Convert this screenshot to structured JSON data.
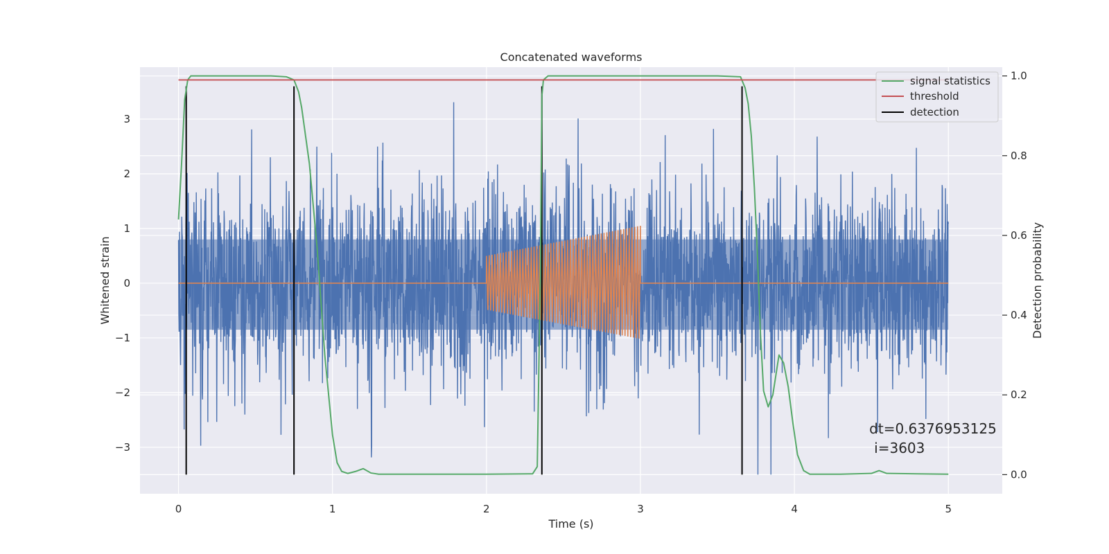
{
  "chart_data": {
    "type": "line",
    "title": "Concatenated waveforms",
    "xlabel": "Time (s)",
    "ylabel": "Whitened strain",
    "ylabel_right": "Detection probability",
    "xlim": [
      -0.25,
      5.35
    ],
    "ylim": [
      -3.85,
      3.95
    ],
    "ylim_right": [
      -0.048,
      1.022
    ],
    "x_ticks": [
      0,
      1,
      2,
      3,
      4,
      5
    ],
    "y_ticks": [
      -3,
      -2,
      -1,
      0,
      1,
      2,
      3
    ],
    "y_ticks_right": [
      0.0,
      0.2,
      0.4,
      0.6,
      0.8,
      1.0
    ],
    "x_tick_labels": [
      "0",
      "1",
      "2",
      "3",
      "4",
      "5"
    ],
    "y_tick_labels": [
      "−3",
      "−2",
      "−1",
      "0",
      "1",
      "2",
      "3"
    ],
    "y_tick_labels_right": [
      "0.0",
      "0.2",
      "0.4",
      "0.6",
      "0.8",
      "1.0"
    ],
    "grid": true,
    "legend_placement": "upper-right",
    "legend": [
      {
        "label": "signal statistics",
        "color": "#55a868"
      },
      {
        "label": "threshold",
        "color": "#c44e52"
      },
      {
        "label": "detection",
        "color": "#000000"
      }
    ],
    "series": [
      {
        "name": "",
        "axis": "left",
        "kind": "noise",
        "color": "#4c72b0",
        "x_range": [
          0,
          5
        ],
        "spread": [
          -3.5,
          3.6
        ],
        "bulk_range": [
          -0.85,
          0.8
        ]
      },
      {
        "name": "",
        "axis": "left",
        "kind": "chirp",
        "color": "#dd8452",
        "x_range": [
          0,
          5
        ],
        "chirp_start": 2.0,
        "chirp_end": 3.0,
        "amplitude_start": 0.5,
        "amplitude_end": 1.05,
        "flat_value": 0
      },
      {
        "name": "signal statistics",
        "axis": "right",
        "color": "#55a868",
        "x": [
          0,
          0.02,
          0.04,
          0.06,
          0.08,
          0.1,
          0.3,
          0.6,
          0.7,
          0.75,
          0.78,
          0.8,
          0.85,
          0.9,
          0.95,
          1.0,
          1.03,
          1.06,
          1.1,
          1.15,
          1.2,
          1.25,
          1.3,
          1.5,
          2.0,
          2.3,
          2.33,
          2.35,
          2.36,
          2.37,
          2.4,
          2.5,
          3.0,
          3.5,
          3.65,
          3.68,
          3.7,
          3.72,
          3.74,
          3.76,
          3.78,
          3.8,
          3.83,
          3.86,
          3.88,
          3.9,
          3.93,
          3.96,
          3.99,
          4.02,
          4.06,
          4.1,
          4.3,
          4.5,
          4.55,
          4.6,
          4.8,
          5.0
        ],
        "y": [
          0.64,
          0.78,
          0.94,
          0.99,
          1.0,
          1.0,
          1.0,
          1.0,
          0.998,
          0.99,
          0.96,
          0.92,
          0.78,
          0.57,
          0.3,
          0.1,
          0.03,
          0.008,
          0.003,
          0.008,
          0.015,
          0.004,
          0.001,
          0.001,
          0.001,
          0.002,
          0.02,
          0.5,
          0.95,
          0.99,
          1.0,
          1.0,
          1.0,
          1.0,
          0.998,
          0.97,
          0.93,
          0.85,
          0.72,
          0.55,
          0.35,
          0.21,
          0.17,
          0.2,
          0.25,
          0.3,
          0.28,
          0.22,
          0.13,
          0.05,
          0.01,
          0.001,
          0.001,
          0.003,
          0.01,
          0.003,
          0.002,
          0.001
        ]
      },
      {
        "name": "threshold",
        "axis": "right",
        "color": "#c44e52",
        "x": [
          0,
          5
        ],
        "y": [
          0.99,
          0.99
        ]
      }
    ],
    "detections": {
      "name": "detection",
      "color": "#000000",
      "x": [
        0.05,
        0.75,
        2.36,
        3.66
      ],
      "y_range": [
        -3.5,
        3.6
      ]
    },
    "annotation": {
      "lines": [
        "dt=0.6376953125",
        "i=3603"
      ],
      "x": 4.5,
      "y": -2.75
    }
  }
}
